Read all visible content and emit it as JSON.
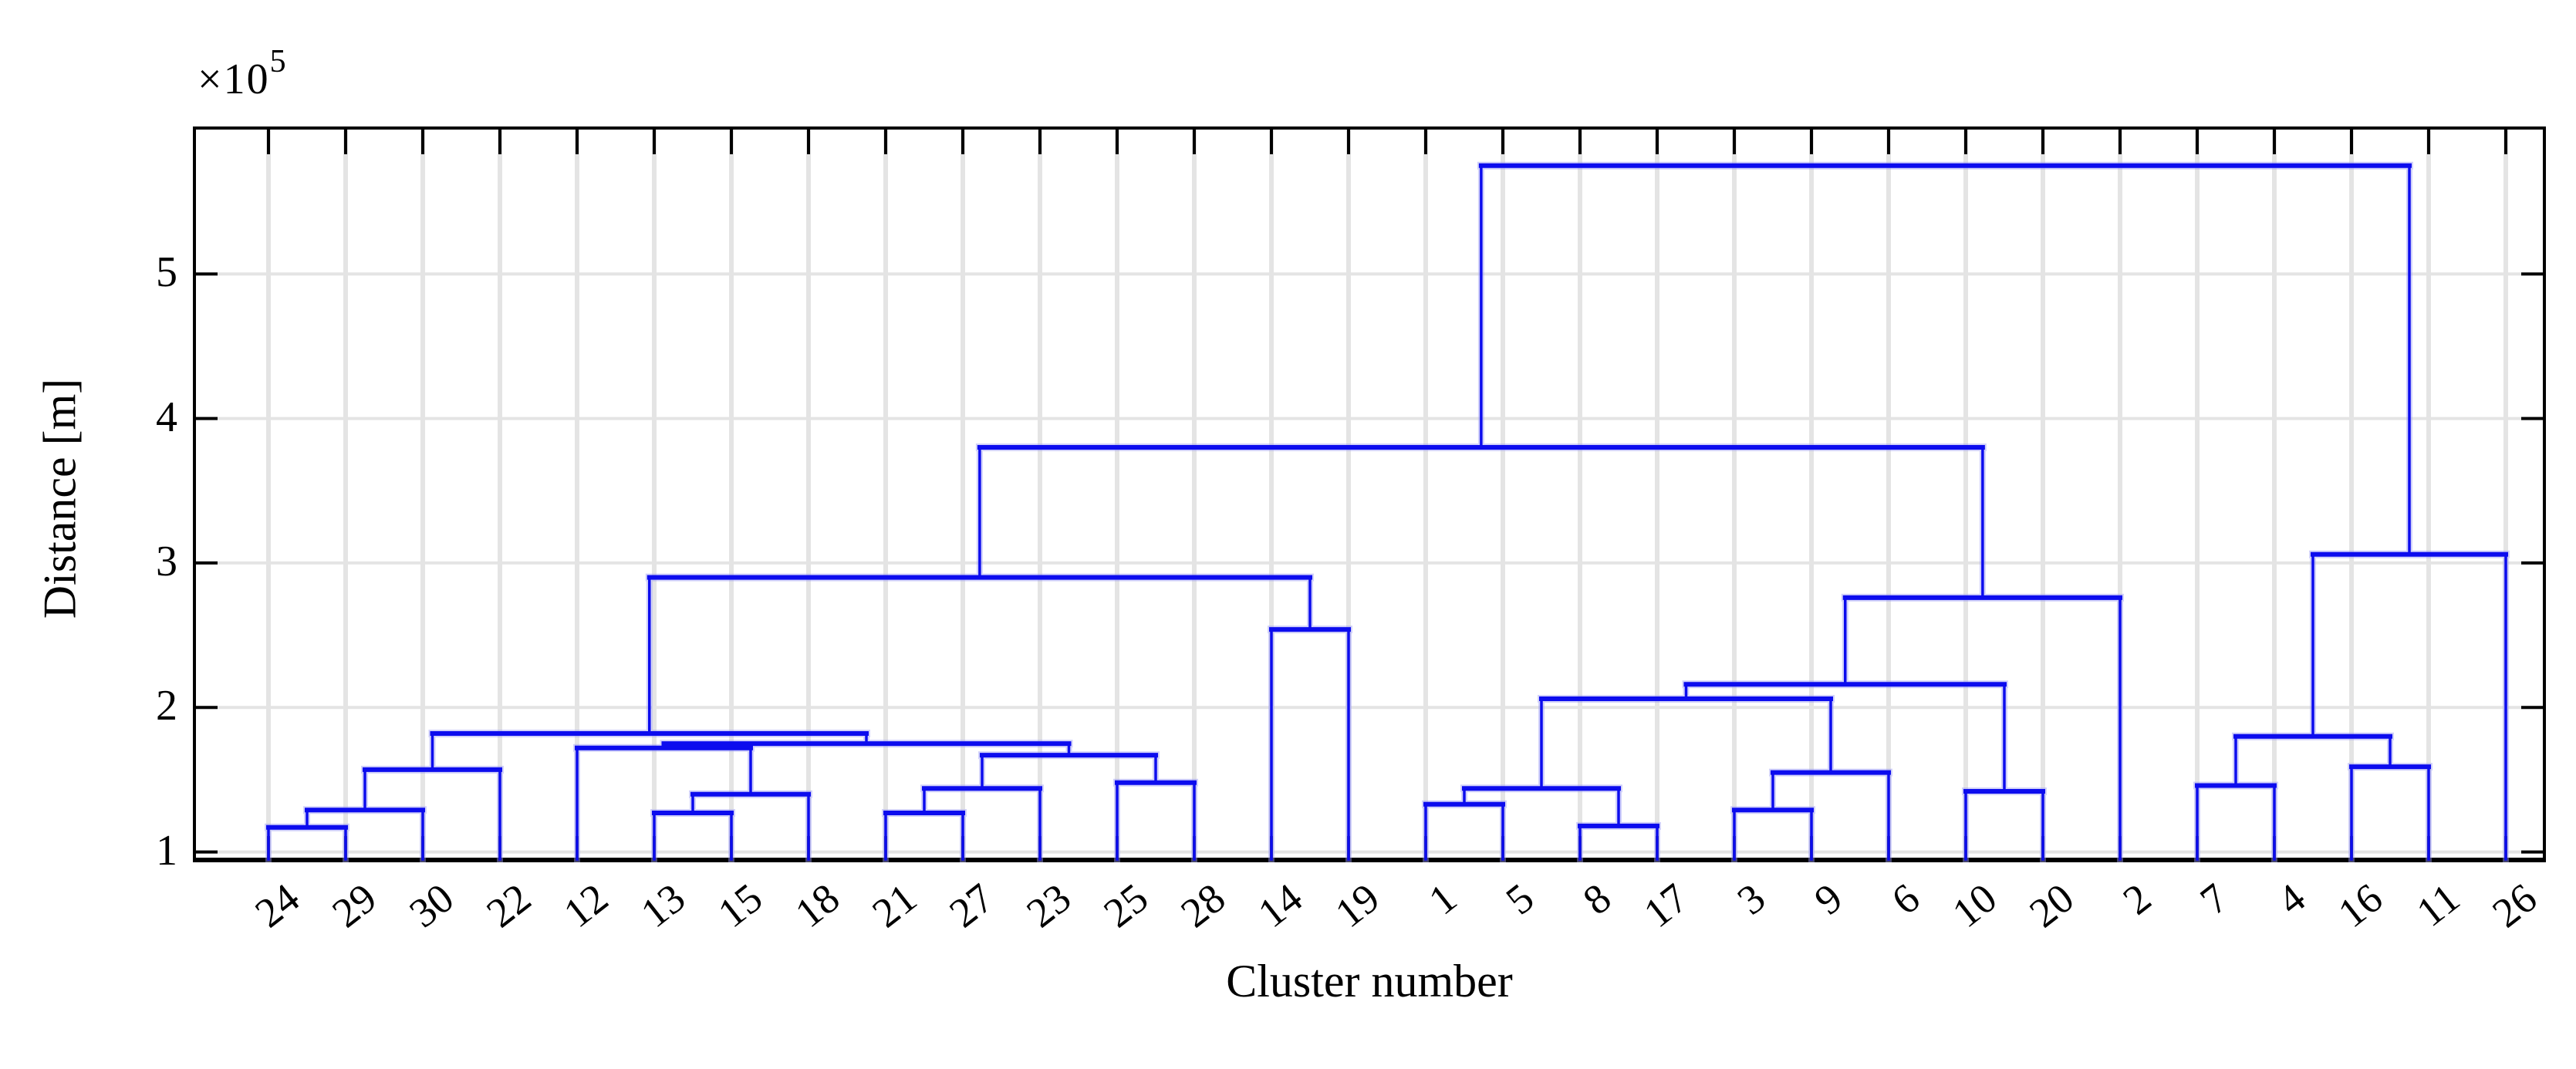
{
  "chart_data": {
    "type": "dendrogram",
    "title": "",
    "xlabel": "Cluster number",
    "ylabel": "Distance [m]",
    "exponent_base": "×10",
    "exponent_power": "5",
    "y_unit_multiplier": 100000,
    "y_ticks": [
      "1",
      "2",
      "3",
      "4",
      "5"
    ],
    "ylim": [
      0.95,
      6.01
    ],
    "grid": true,
    "legend": "none",
    "line_color": "#0c0cee",
    "line_halo_color": "#9a9af6",
    "grid_color": "#e4e4e4",
    "axis_color": "#000000",
    "leaves": [
      "24",
      "29",
      "30",
      "22",
      "12",
      "13",
      "15",
      "18",
      "21",
      "27",
      "23",
      "25",
      "28",
      "14",
      "19",
      "1",
      "5",
      "8",
      "17",
      "3",
      "9",
      "6",
      "10",
      "20",
      "2",
      "7",
      "4",
      "16",
      "11",
      "26"
    ],
    "merges": [
      [
        "24",
        "29",
        1.17
      ],
      [
        0,
        "30",
        1.29
      ],
      [
        1,
        "22",
        1.57
      ],
      [
        "13",
        "15",
        1.27
      ],
      [
        3,
        "18",
        1.4
      ],
      [
        "12",
        4,
        1.72
      ],
      [
        "21",
        "27",
        1.27
      ],
      [
        6,
        "23",
        1.44
      ],
      [
        "25",
        "28",
        1.48
      ],
      [
        7,
        8,
        1.67
      ],
      [
        5,
        9,
        1.75
      ],
      [
        2,
        10,
        1.82
      ],
      [
        "14",
        "19",
        2.54
      ],
      [
        11,
        12,
        2.9
      ],
      [
        "1",
        "5",
        1.33
      ],
      [
        "8",
        "17",
        1.18
      ],
      [
        14,
        15,
        1.44
      ],
      [
        "3",
        "9",
        1.29
      ],
      [
        17,
        "6",
        1.55
      ],
      [
        16,
        18,
        2.06
      ],
      [
        "10",
        "20",
        1.42
      ],
      [
        19,
        20,
        2.16
      ],
      [
        21,
        "2",
        2.76
      ],
      [
        13,
        22,
        3.8
      ],
      [
        "7",
        "4",
        1.46
      ],
      [
        "16",
        "11",
        1.59
      ],
      [
        24,
        25,
        1.8
      ],
      [
        26,
        "26",
        3.06
      ],
      [
        23,
        27,
        5.75
      ]
    ]
  }
}
